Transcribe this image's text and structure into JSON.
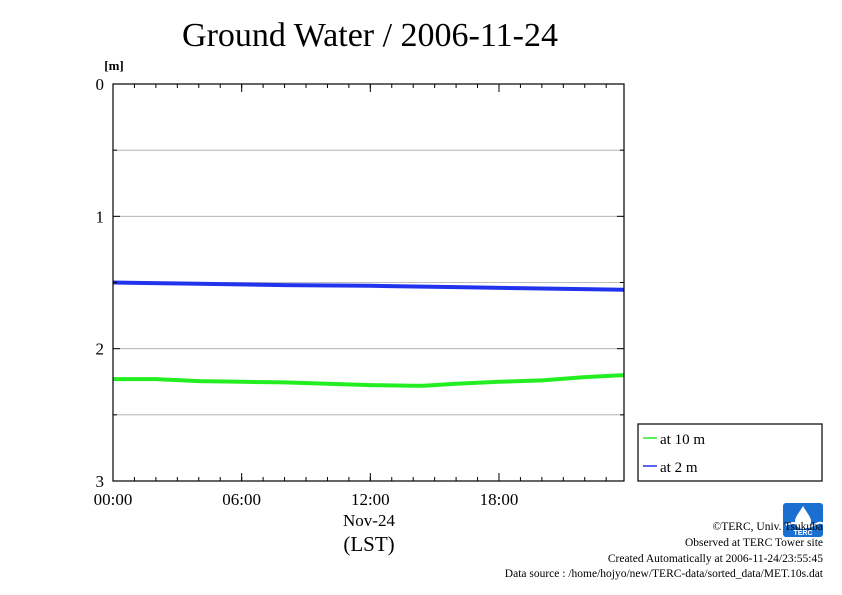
{
  "chart_data": {
    "type": "line",
    "title": "Ground Water / 2006-11-24",
    "ylabel": "[m]",
    "xlabel": "(LST)",
    "date_label": "Nov-24",
    "ylim": [
      0,
      3
    ],
    "y_inverted": true,
    "y_ticks": [
      "0",
      "1",
      "2",
      "3"
    ],
    "y_minor": [
      0.5,
      1.5,
      2.5
    ],
    "xlim_hours": [
      0,
      23.83
    ],
    "x_ticks": [
      {
        "hour": 0,
        "label": "00:00"
      },
      {
        "hour": 6,
        "label": "06:00"
      },
      {
        "hour": 12,
        "label": "12:00"
      },
      {
        "hour": 18,
        "label": "18:00"
      }
    ],
    "grid": true,
    "legend_position": "right-bottom",
    "series": [
      {
        "name": "at 10 m",
        "color": "#22ee22",
        "x": [
          0,
          2,
          4,
          6,
          8,
          10,
          12,
          14,
          14.5,
          16,
          18,
          20,
          22,
          23.83
        ],
        "y": [
          2.23,
          2.23,
          2.245,
          2.25,
          2.255,
          2.265,
          2.275,
          2.28,
          2.28,
          2.265,
          2.25,
          2.24,
          2.215,
          2.2
        ]
      },
      {
        "name": "at 2 m",
        "color": "#2233ee",
        "x": [
          0,
          4,
          8,
          12,
          16,
          20,
          23.83
        ],
        "y": [
          1.5,
          1.51,
          1.52,
          1.525,
          1.535,
          1.545,
          1.555
        ]
      }
    ]
  },
  "footer": {
    "copyright": "©TERC, Univ. Tsukuba",
    "observed": "Observed at TERC Tower site",
    "created": "Created Automatically at 2006-11-24/23:55:45",
    "source": "Data source : /home/hojyo/new/TERC-data/sorted_data/MET.10s.dat"
  },
  "logo": {
    "icon": "terc-logo-icon",
    "text": "TERC",
    "color": "#1a6fd0"
  }
}
